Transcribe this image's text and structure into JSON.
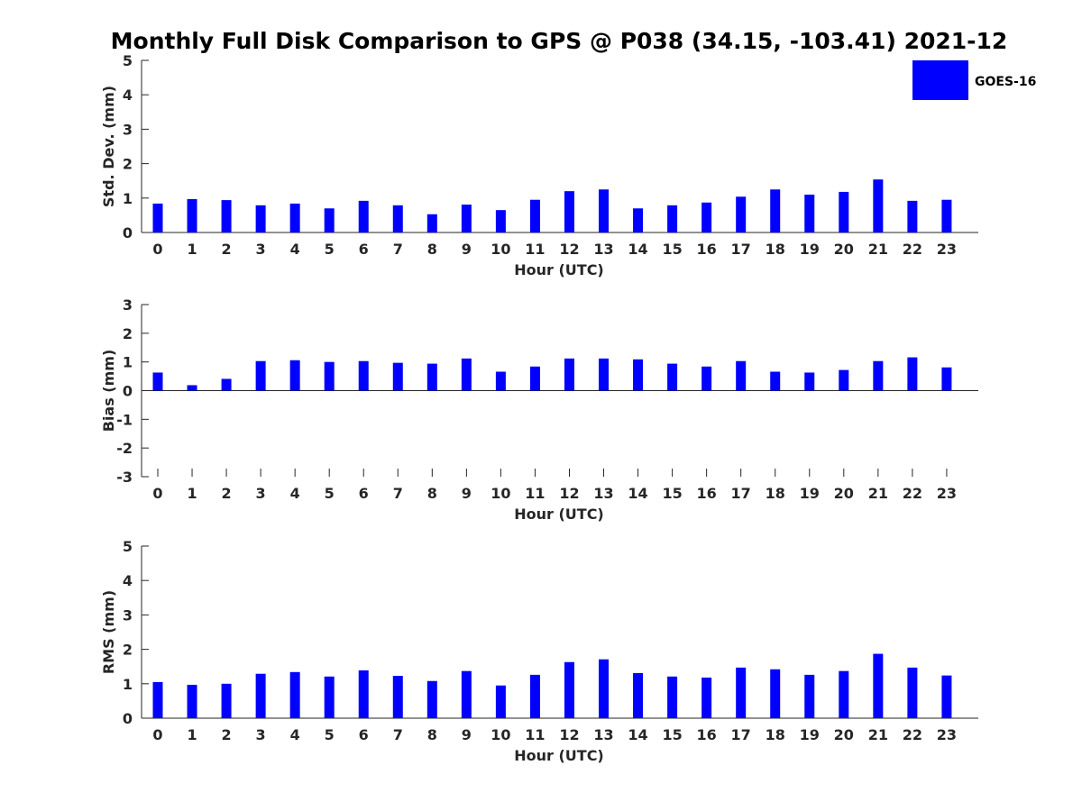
{
  "title": "Monthly Full Disk Comparison to GPS @ P038 (34.15, -103.41) 2021-12",
  "legend": {
    "label": "GOES-16",
    "color": "#0000ff"
  },
  "chart_data": [
    {
      "type": "bar",
      "ylabel": "Std. Dev. (mm)",
      "xlabel": "Hour (UTC)",
      "ylim": [
        0,
        5
      ],
      "yticks": [
        "0",
        "1",
        "2",
        "3",
        "4",
        "5"
      ],
      "categories": [
        "0",
        "1",
        "2",
        "3",
        "4",
        "5",
        "6",
        "7",
        "8",
        "9",
        "10",
        "11",
        "12",
        "13",
        "14",
        "15",
        "16",
        "17",
        "18",
        "19",
        "20",
        "21",
        "22",
        "23"
      ],
      "series": [
        {
          "name": "GOES-16",
          "values": [
            0.84,
            0.97,
            0.94,
            0.79,
            0.84,
            0.7,
            0.92,
            0.79,
            0.53,
            0.81,
            0.65,
            0.95,
            1.2,
            1.25,
            0.7,
            0.79,
            0.87,
            1.04,
            1.25,
            1.1,
            1.18,
            1.54,
            0.92,
            0.95
          ]
        }
      ]
    },
    {
      "type": "bar",
      "ylabel": "Bias (mm)",
      "xlabel": "Hour (UTC)",
      "ylim": [
        -3,
        3
      ],
      "yticks": [
        "-3",
        "-2",
        "-1",
        "0",
        "1",
        "2",
        "3"
      ],
      "categories": [
        "0",
        "1",
        "2",
        "3",
        "4",
        "5",
        "6",
        "7",
        "8",
        "9",
        "10",
        "11",
        "12",
        "13",
        "14",
        "15",
        "16",
        "17",
        "18",
        "19",
        "20",
        "21",
        "22",
        "23"
      ],
      "series": [
        {
          "name": "GOES-16",
          "values": [
            0.63,
            0.19,
            0.41,
            1.03,
            1.06,
            1.0,
            1.03,
            0.97,
            0.94,
            1.12,
            0.66,
            0.84,
            1.12,
            1.12,
            1.09,
            0.94,
            0.84,
            1.03,
            0.66,
            0.63,
            0.72,
            1.03,
            1.16,
            0.81
          ]
        }
      ]
    },
    {
      "type": "bar",
      "ylabel": "RMS (mm)",
      "xlabel": "Hour (UTC)",
      "ylim": [
        0,
        5
      ],
      "yticks": [
        "0",
        "1",
        "2",
        "3",
        "4",
        "5"
      ],
      "categories": [
        "0",
        "1",
        "2",
        "3",
        "4",
        "5",
        "6",
        "7",
        "8",
        "9",
        "10",
        "11",
        "12",
        "13",
        "14",
        "15",
        "16",
        "17",
        "18",
        "19",
        "20",
        "21",
        "22",
        "23"
      ],
      "series": [
        {
          "name": "GOES-16",
          "values": [
            1.05,
            0.97,
            1.0,
            1.29,
            1.34,
            1.21,
            1.39,
            1.23,
            1.08,
            1.37,
            0.95,
            1.26,
            1.63,
            1.71,
            1.31,
            1.21,
            1.18,
            1.47,
            1.42,
            1.26,
            1.37,
            1.87,
            1.47,
            1.24
          ]
        }
      ]
    }
  ]
}
